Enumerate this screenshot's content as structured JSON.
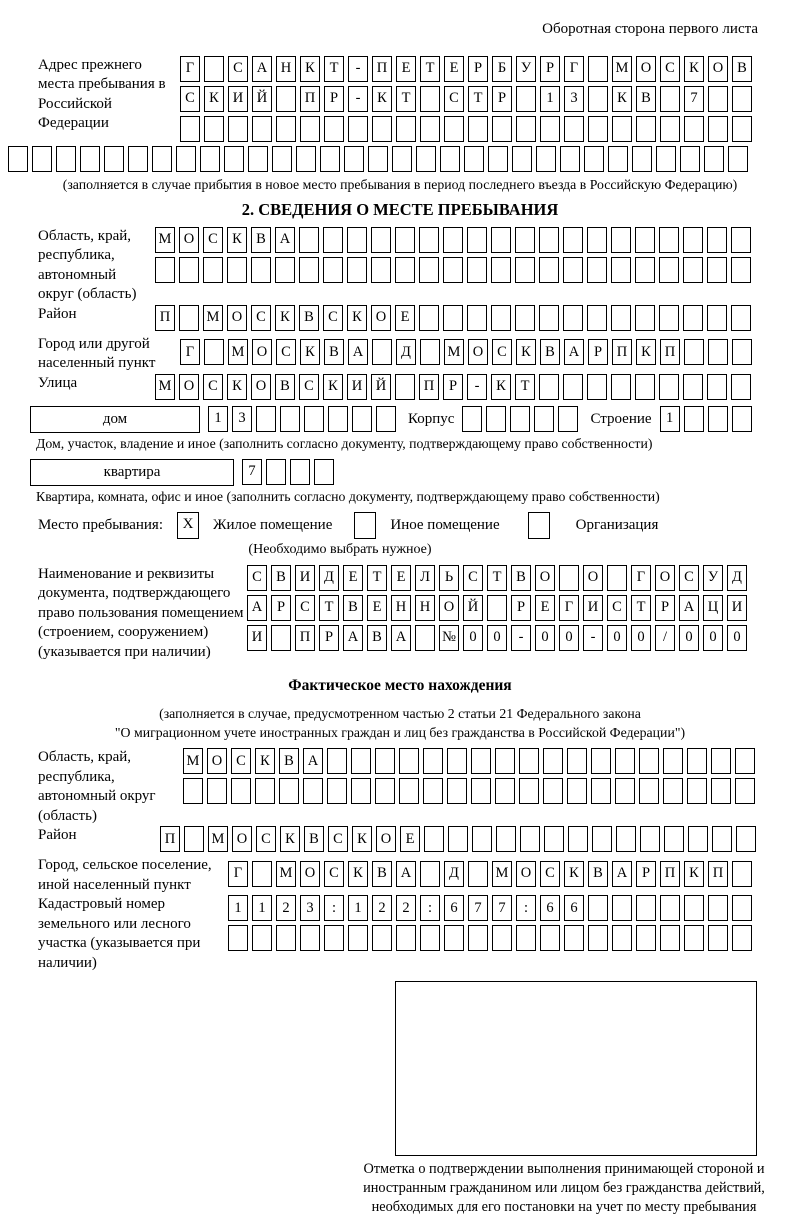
{
  "page": {
    "header_note": "Оборотная сторона первого листа"
  },
  "prev_address": {
    "label": "Адрес прежнего места пребывания в Российской Федерации",
    "r1": "Г САНКТ-ПЕТЕРБУРГ МОСКОВ",
    "r2": "СКИЙ ПР-КТ СТР 13 КВ 7",
    "r3": "",
    "r4": "",
    "note": "(заполняется в случае прибытия в новое место пребывания в период последнего въезда в Российскую Федерацию)"
  },
  "section2": {
    "title": "2. СВЕДЕНИЯ О МЕСТЕ ПРЕБЫВАНИЯ",
    "oblast": {
      "label": "Область, край, республика, автономный округ (область)",
      "r1": "МОСКВА",
      "r2": ""
    },
    "raion": {
      "label": "Район",
      "value": "П МОСКВСКОЕ"
    },
    "gorod": {
      "label": "Город или другой населенный пункт",
      "value": "Г МОСКВА Д МОСКВАРПКП"
    },
    "ulitsa": {
      "label": "Улица",
      "value": "МОСКОВСКИЙ ПР-КТ"
    },
    "dom": {
      "label": "дом",
      "value": "13",
      "korpus_label": "Корпус",
      "korpus": "",
      "stroenie_label": "Строение",
      "stroenie": "1",
      "note": "Дом, участок, владение и иное (заполнить согласно документу, подтверждающему право собственности)"
    },
    "kvartira": {
      "label": "квартира",
      "value": "7",
      "note": "Квартира, комната, офис и иное (заполнить согласно документу, подтверждающему право собственности)"
    },
    "place": {
      "label": "Место пребывания:",
      "options": [
        {
          "label": "Жилое помещение",
          "mark": "X"
        },
        {
          "label": "Иное помещение",
          "mark": ""
        },
        {
          "label": "Организация",
          "mark": ""
        }
      ],
      "note": "(Необходимо выбрать нужное)"
    },
    "doc": {
      "label": "Наименование и реквизиты документа, подтверждающего право пользования помещением (строением, сооружением) (указывается при наличии)",
      "r1": "СВИДЕТЕЛЬСТВО О ГОСУД",
      "r2": "АРСТВЕННОЙ РЕГИСТРАЦИ",
      "r3": "И ПРАВА №00-00-00/000"
    }
  },
  "actual_location": {
    "title": "Фактическое место нахождения",
    "note1": "(заполняется в случае, предусмотренном частью 2 статьи 21 Федерального закона",
    "note2": "\"О миграционном учете иностранных граждан и лиц без гражданства в Российской Федерации\")",
    "oblast": {
      "label": "Область, край, республика, автономный округ (область)",
      "r1": "МОСКВА",
      "r2": ""
    },
    "raion": {
      "label": "Район",
      "value": "П МОСКВСКОЕ"
    },
    "gorod": {
      "label": "Город, сельское поселение, иной населенный пункт",
      "value": "Г МОСКВА Д МОСКВАРПКП"
    },
    "kadastr": {
      "label": "Кадастровый номер земельного или лесного участка (указывается при наличии)",
      "r1": "1123:122:677:66",
      "r2": ""
    },
    "stamp_note": "Отметка о подтверждении выполнения принимающей стороной и иностранным гражданином или лицом без гражданства действий, необходимых для его постановки на учет по месту пребывания"
  }
}
